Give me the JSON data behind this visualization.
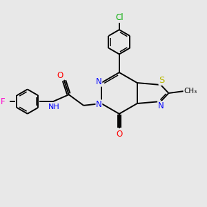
{
  "background_color": "#e8e8e8",
  "bond_color": "#000000",
  "atom_colors": {
    "N": "#0000ff",
    "O": "#ff0000",
    "S": "#b8b800",
    "F": "#ff00cc",
    "Cl": "#00aa00",
    "C": "#000000",
    "H": "#444444"
  },
  "figsize": [
    3.0,
    3.0
  ],
  "dpi": 100
}
